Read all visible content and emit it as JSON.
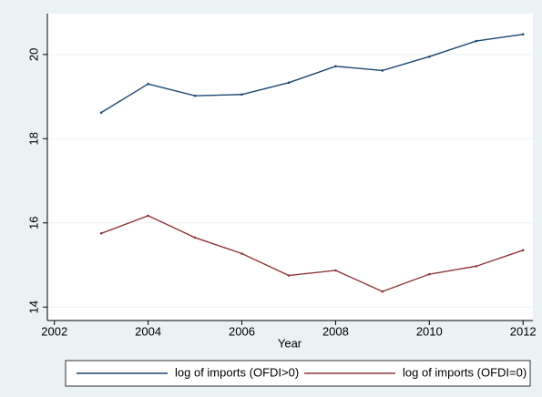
{
  "chart_data": {
    "type": "line",
    "x_label": "Year",
    "x": [
      2003,
      2004,
      2005,
      2006,
      2007,
      2008,
      2009,
      2010,
      2011,
      2012
    ],
    "series": [
      {
        "name": "log of imports (OFDI>0)",
        "color": "#1a476f",
        "values": [
          18.62,
          19.3,
          19.02,
          19.05,
          19.33,
          19.72,
          19.62,
          19.95,
          20.32,
          20.48
        ]
      },
      {
        "name": "log of imports (OFDI=0)",
        "color": "#90353b",
        "values": [
          15.75,
          16.17,
          15.65,
          15.27,
          14.75,
          14.87,
          14.37,
          14.78,
          14.97,
          15.35
        ]
      }
    ],
    "xlim": [
      2001.85,
      2012.21
    ],
    "xticks": [
      2002,
      2004,
      2006,
      2008,
      2010,
      2012
    ],
    "ylim": [
      13.68,
      20.97
    ],
    "yticks": [
      14,
      16,
      18,
      20
    ],
    "grid": true,
    "legend": "bottom"
  }
}
